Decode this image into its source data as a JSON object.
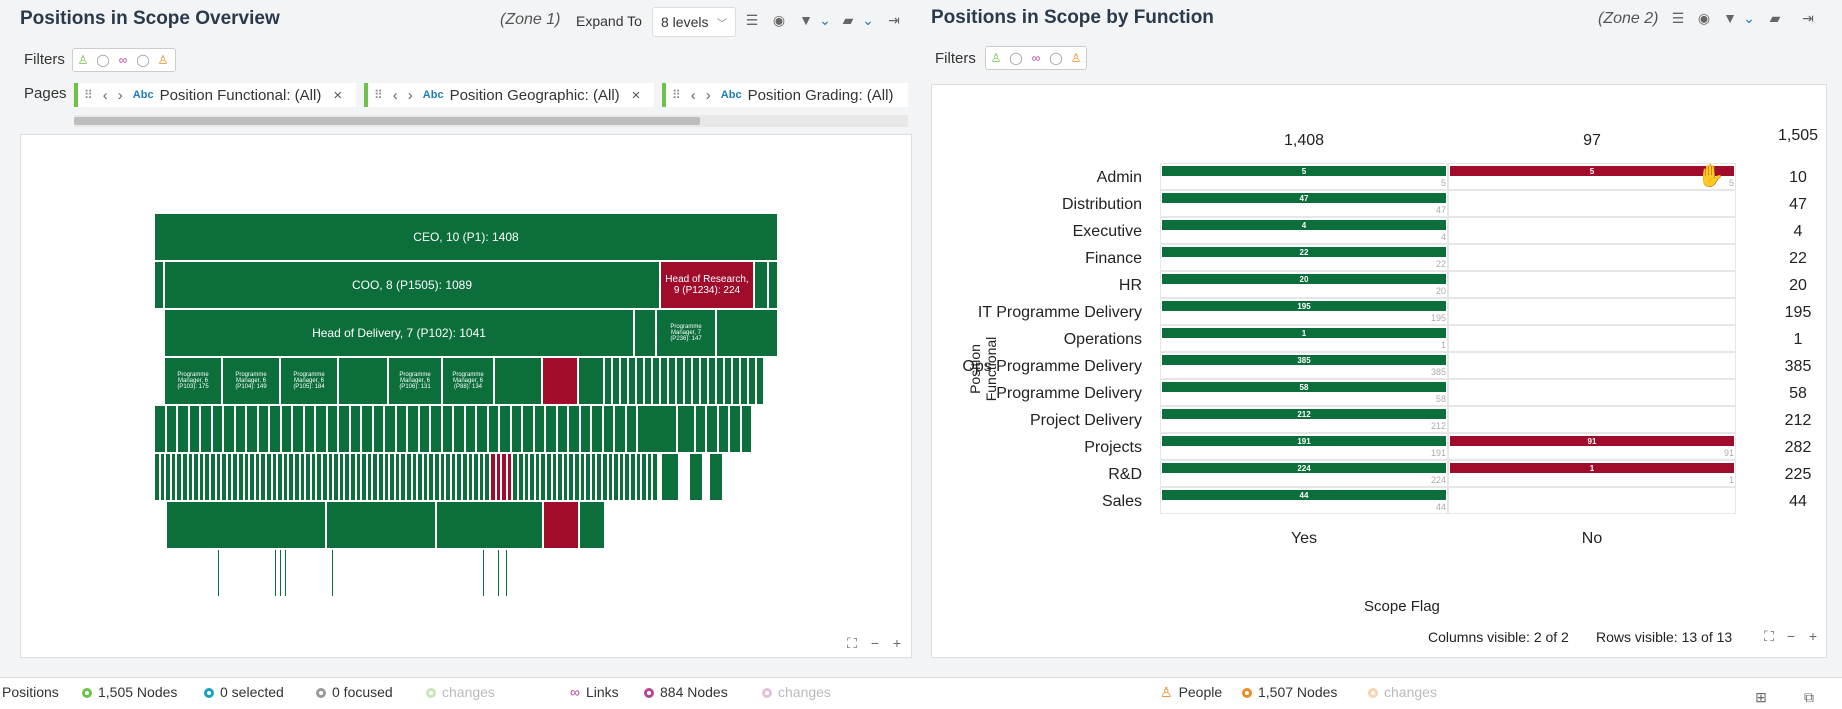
{
  "left": {
    "title": "Positions in Scope Overview",
    "zone": "(Zone 1)",
    "expand_label": "Expand To",
    "expand_value": "8 levels",
    "filters_label": "Filters",
    "pages_label": "Pages",
    "pages": [
      {
        "label": "Position Functional: (All)"
      },
      {
        "label": "Position Geographic: (All)"
      },
      {
        "label": "Position Grading: (All)"
      }
    ],
    "treemap": {
      "ceo": "CEO, 10 (P1): 1408",
      "coo": "COO, 8 (P1505): 1089",
      "head_research": "Head of Research, 9 (P1234): 224",
      "head_delivery": "Head of Delivery, 7 (P102): 1041",
      "pm1": "Programme Manager, 6 (P103): 175",
      "pm2": "Programme Manager, 6 (P104): 149",
      "pm3": "Programme Manager, 6 (P105): 184",
      "pm4": "Programme Manager, 6 (P106): 131",
      "pm5": "Programme Manager, 6 (P88): 134",
      "pm6": "Programme Manager, 7 (P236): 147"
    }
  },
  "right": {
    "title": "Positions in Scope by Function",
    "zone": "(Zone 2)",
    "filters_label": "Filters",
    "columns_visible": "Columns visible: 2 of 2",
    "rows_visible": "Rows visible: 13 of 13"
  },
  "chart_data": {
    "type": "bar",
    "xlabel": "Scope Flag",
    "ylabel": "Position Functional",
    "columns": [
      "Yes",
      "No"
    ],
    "column_totals": [
      1408,
      97
    ],
    "grand_total": 1505,
    "categories": [
      "Admin",
      "Distribution",
      "Executive",
      "Finance",
      "HR",
      "IT Programme Delivery",
      "Operations",
      "Ops Programme Delivery",
      "Programme Delivery",
      "Project Delivery",
      "Projects",
      "R&D",
      "Sales"
    ],
    "series": [
      {
        "name": "Yes",
        "values": [
          5,
          47,
          4,
          22,
          20,
          195,
          1,
          385,
          58,
          212,
          191,
          224,
          44
        ]
      },
      {
        "name": "No",
        "values": [
          5,
          0,
          0,
          0,
          0,
          0,
          0,
          0,
          0,
          0,
          91,
          1,
          0
        ]
      }
    ],
    "row_totals": [
      10,
      47,
      4,
      22,
      20,
      195,
      1,
      385,
      58,
      212,
      282,
      225,
      44
    ],
    "colors": {
      "yes": "#0b6e3b",
      "no": "#a00c2c"
    }
  },
  "status": {
    "positions_label": "Positions",
    "positions_nodes": "1,505 Nodes",
    "selected": "0 selected",
    "focused": "0 focused",
    "changes": "changes",
    "links_label": "Links",
    "links_nodes": "884 Nodes",
    "people_label": "People",
    "people_nodes": "1,507 Nodes"
  }
}
